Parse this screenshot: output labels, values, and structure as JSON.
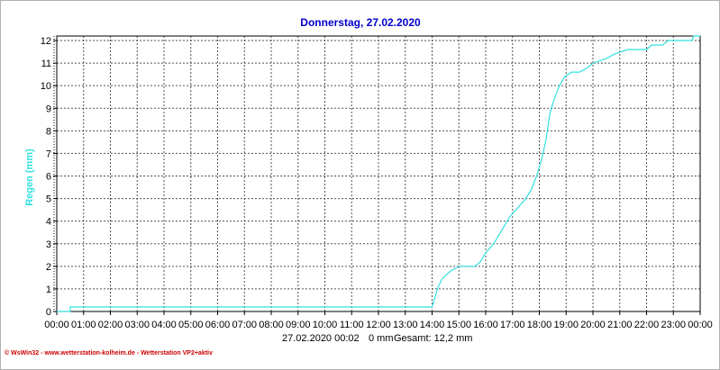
{
  "chart_data": {
    "type": "line",
    "title": "Donnerstag, 27.02.2020",
    "ylabel": "Regen  (mm)",
    "xlabel": "",
    "x_ticks": [
      "00:00",
      "01:00",
      "02:00",
      "03:00",
      "04:00",
      "05:00",
      "06:00",
      "07:00",
      "08:00",
      "09:00",
      "10:00",
      "11:00",
      "12:00",
      "13:00",
      "14:00",
      "15:00",
      "16:00",
      "17:00",
      "18:00",
      "19:00",
      "20:00",
      "21:00",
      "22:00",
      "23:00",
      "00:00"
    ],
    "y_ticks": [
      "0",
      "1",
      "2",
      "3",
      "4",
      "5",
      "6",
      "7",
      "8",
      "9",
      "10",
      "11",
      "12"
    ],
    "xlim_hours": [
      0,
      24
    ],
    "ylim": [
      0,
      12.2
    ],
    "grid": true,
    "line_color": "#33e0e0",
    "series": [
      {
        "points": [
          [
            0,
            0
          ],
          [
            0.5,
            0
          ],
          [
            0.5,
            0.2
          ],
          [
            14.0,
            0.2
          ],
          [
            14.1,
            0.6
          ],
          [
            14.2,
            1.0
          ],
          [
            14.35,
            1.4
          ],
          [
            14.5,
            1.6
          ],
          [
            14.7,
            1.8
          ],
          [
            15.0,
            2.0
          ],
          [
            15.6,
            2.0
          ],
          [
            15.8,
            2.2
          ],
          [
            16.0,
            2.6
          ],
          [
            16.3,
            3.0
          ],
          [
            16.6,
            3.6
          ],
          [
            16.9,
            4.2
          ],
          [
            17.2,
            4.6
          ],
          [
            17.5,
            5.0
          ],
          [
            17.7,
            5.4
          ],
          [
            17.9,
            6.0
          ],
          [
            18.1,
            6.8
          ],
          [
            18.25,
            7.6
          ],
          [
            18.4,
            8.8
          ],
          [
            18.55,
            9.4
          ],
          [
            18.75,
            10.0
          ],
          [
            18.95,
            10.4
          ],
          [
            19.2,
            10.6
          ],
          [
            19.5,
            10.6
          ],
          [
            19.8,
            10.8
          ],
          [
            20.0,
            11.0
          ],
          [
            20.5,
            11.2
          ],
          [
            20.8,
            11.4
          ],
          [
            21.3,
            11.6
          ],
          [
            22.0,
            11.6
          ],
          [
            22.2,
            11.8
          ],
          [
            22.6,
            11.8
          ],
          [
            22.8,
            12.0
          ],
          [
            23.7,
            12.0
          ],
          [
            23.75,
            12.2
          ],
          [
            24.0,
            12.2
          ]
        ]
      }
    ]
  },
  "footer": {
    "timestamp": "27.02.2020  00:02",
    "current": "0 mm",
    "total": "Gesamt: 12,2 mm"
  },
  "credit": "© WsWin32  -  www.wetterstation-kolheim.de  -  Wetterstation VP2+aktiv"
}
